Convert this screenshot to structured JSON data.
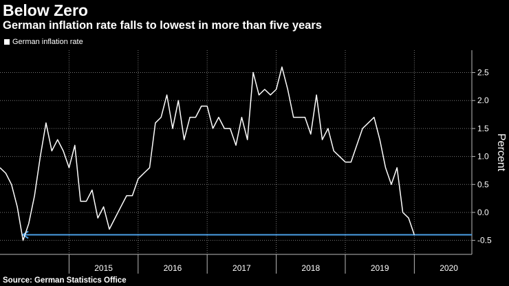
{
  "title": "Below Zero",
  "subtitle": "German inflation rate falls to lowest in more than five years",
  "source": "Source: German Statistics Office",
  "colors": {
    "background": "#000000",
    "line": "#ffffff",
    "arrow": "#4a9fe6",
    "grid": "#7a7a7a"
  },
  "chart_data": {
    "type": "line",
    "title": "Below Zero",
    "subtitle": "German inflation rate falls to lowest in more than five years",
    "ylabel": "Percent",
    "xlabel": "",
    "ylim": [
      -0.75,
      2.9
    ],
    "xlim": [
      2014.0,
      2020.833
    ],
    "yticks": [
      2.5,
      2.0,
      1.5,
      1.0,
      0.5,
      0.0,
      -0.5
    ],
    "ytick_labels": [
      "2.5",
      "2.0",
      "1.5",
      "1.0",
      "0.5",
      "0.0",
      "-0.5"
    ],
    "xticks": [
      {
        "label": "2015",
        "at": 2015.5
      },
      {
        "label": "2016",
        "at": 2016.5
      },
      {
        "label": "2017",
        "at": 2017.5
      },
      {
        "label": "2018",
        "at": 2018.5
      },
      {
        "label": "2019",
        "at": 2019.5
      },
      {
        "label": "2020",
        "at": 2020.5
      }
    ],
    "year_boundaries": [
      2015,
      2016,
      2017,
      2018,
      2019,
      2020
    ],
    "grid": true,
    "legend": "top-left",
    "series": [
      {
        "name": "German inflation rate",
        "start": 2014.0,
        "step": 0.08333,
        "values": [
          0.8,
          0.7,
          0.5,
          0.1,
          -0.5,
          -0.2,
          0.3,
          1.0,
          1.6,
          1.1,
          1.3,
          1.1,
          0.8,
          1.2,
          0.2,
          0.2,
          0.4,
          -0.1,
          0.1,
          -0.3,
          -0.1,
          0.1,
          0.3,
          0.3,
          0.6,
          0.7,
          0.8,
          1.6,
          1.7,
          2.1,
          1.5,
          2.0,
          1.3,
          1.7,
          1.7,
          1.9,
          1.9,
          1.5,
          1.7,
          1.5,
          1.5,
          1.2,
          1.7,
          1.3,
          2.5,
          2.1,
          2.2,
          2.1,
          2.2,
          2.6,
          2.2,
          1.7,
          1.7,
          1.7,
          1.4,
          2.1,
          1.3,
          1.5,
          1.1,
          1.0,
          0.9,
          0.9,
          1.2,
          1.5,
          1.6,
          1.7,
          1.3,
          0.8,
          0.5,
          0.8,
          0.0,
          -0.1,
          -0.4
        ]
      }
    ],
    "annotations": [
      {
        "type": "arrow",
        "from_x": 2020.833,
        "to_x": 2014.33,
        "y": -0.4
      }
    ]
  }
}
